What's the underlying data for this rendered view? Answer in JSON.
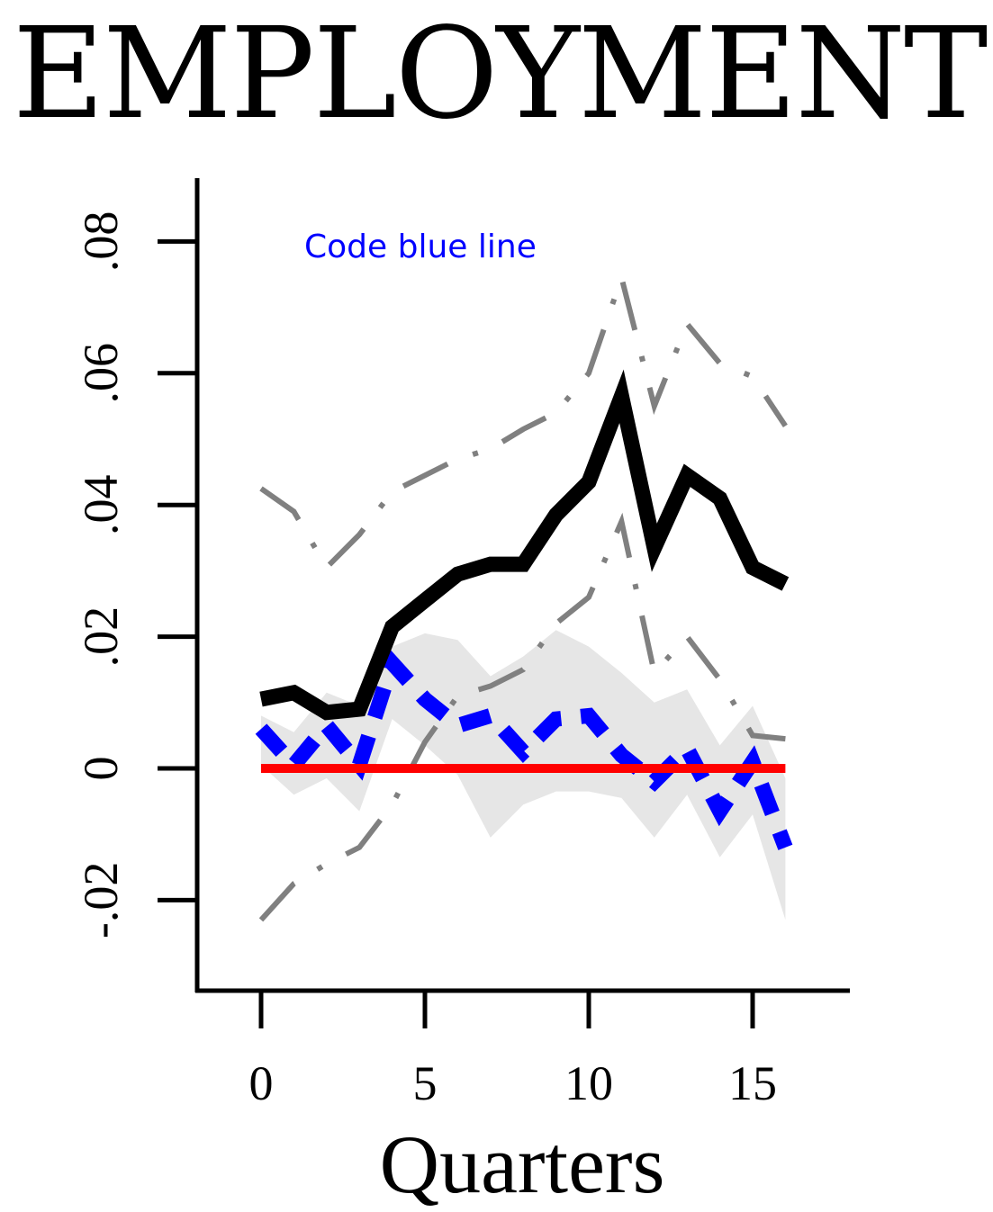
{
  "chart_data": {
    "type": "line",
    "title": "EMPLOYMENT",
    "xlabel": "Quarters",
    "ylabel": "",
    "xlim": [
      -3.8,
      18
    ],
    "ylim": [
      -0.033,
      0.089
    ],
    "xticks": [
      0,
      5,
      10,
      15
    ],
    "xtick_labels": [
      "0",
      "5",
      "10",
      "15"
    ],
    "yticks": [
      -0.02,
      0,
      0.02,
      0.04,
      0.06,
      0.08
    ],
    "ytick_labels": [
      "-.02",
      "0",
      ".02",
      ".04",
      ".06",
      ".08"
    ],
    "annotation": "Code blue line",
    "colors": {
      "main": "#000000",
      "blue": "#0000ff",
      "band_lines": "#808080",
      "shade": "#e6e6e6",
      "zero_line": "#ff0000",
      "annotation": "#0000ff"
    },
    "series": [
      {
        "x": [
          0,
          1,
          2,
          3,
          4,
          5,
          6,
          7,
          8,
          9,
          10,
          11,
          12,
          13,
          14,
          15,
          16
        ],
        "values": [
          0.0105,
          0.0115,
          0.0085,
          0.009,
          0.0215,
          0.0255,
          0.0295,
          0.031,
          0.031,
          0.0385,
          0.0435,
          0.0565,
          0.0335,
          0.0445,
          0.041,
          0.0305,
          0.028
        ],
        "style": "solid-thick",
        "color_key": "main"
      },
      {
        "x": [
          0,
          1,
          2,
          3,
          4,
          5,
          6,
          7,
          8,
          9,
          10,
          11,
          12,
          13,
          14,
          15,
          16
        ],
        "values": [
          0.006,
          0.0005,
          0.0065,
          0.0005,
          0.016,
          0.0105,
          0.0065,
          0.008,
          0.0025,
          0.0075,
          0.008,
          0.002,
          -0.002,
          0.003,
          -0.0065,
          0.001,
          -0.012
        ],
        "style": "dashed-thick",
        "color_key": "blue"
      },
      {
        "x": [
          0,
          1,
          2,
          3,
          4,
          5,
          6,
          7,
          8,
          9,
          10,
          11,
          12,
          13,
          14,
          15,
          16
        ],
        "values": [
          0.0425,
          0.039,
          0.0305,
          0.0355,
          0.042,
          0.0445,
          0.047,
          0.0485,
          0.0515,
          0.054,
          0.06,
          0.0745,
          0.055,
          0.0675,
          0.0615,
          0.0595,
          0.052
        ],
        "style": "dashed",
        "color_key": "band_lines"
      },
      {
        "x": [
          0,
          1,
          2,
          3,
          4,
          5,
          6,
          7,
          8,
          9,
          10,
          11,
          12,
          13,
          14,
          15,
          16
        ],
        "values": [
          -0.023,
          -0.0175,
          -0.0145,
          -0.012,
          -0.0055,
          0.004,
          0.011,
          0.0125,
          0.015,
          0.022,
          0.026,
          0.0375,
          0.0145,
          0.02,
          0.0135,
          0.005,
          0.0045
        ],
        "style": "dashed",
        "color_key": "band_lines"
      },
      {
        "x": [
          0,
          1,
          2,
          3,
          4,
          5,
          6,
          7,
          8,
          9,
          10,
          11,
          12,
          13,
          14,
          15,
          16
        ],
        "values": [
          0.0,
          0.0,
          0.0,
          0.0,
          0.0,
          0.0,
          0.0,
          0.0,
          0.0,
          0.0,
          0.0,
          0.0,
          0.0,
          0.0,
          0.0,
          0.0,
          0.0
        ],
        "style": "solid",
        "color_key": "zero_line"
      }
    ],
    "shaded_band": {
      "x": [
        0,
        1,
        2,
        3,
        4,
        5,
        6,
        7,
        8,
        9,
        10,
        11,
        12,
        13,
        14,
        15,
        16
      ],
      "upper": [
        0.008,
        0.0055,
        0.0115,
        0.0095,
        0.0185,
        0.0205,
        0.0195,
        0.014,
        0.017,
        0.021,
        0.0185,
        0.0145,
        0.01,
        0.012,
        0.0035,
        0.0095,
        -0.0015
      ],
      "lower": [
        0.0005,
        -0.004,
        -0.0015,
        -0.0065,
        0.0075,
        0.0035,
        -0.001,
        -0.0105,
        -0.0055,
        -0.0035,
        -0.0035,
        -0.0045,
        -0.0105,
        -0.004,
        -0.0135,
        -0.007,
        -0.023
      ]
    },
    "grid": false,
    "legend": "none"
  }
}
